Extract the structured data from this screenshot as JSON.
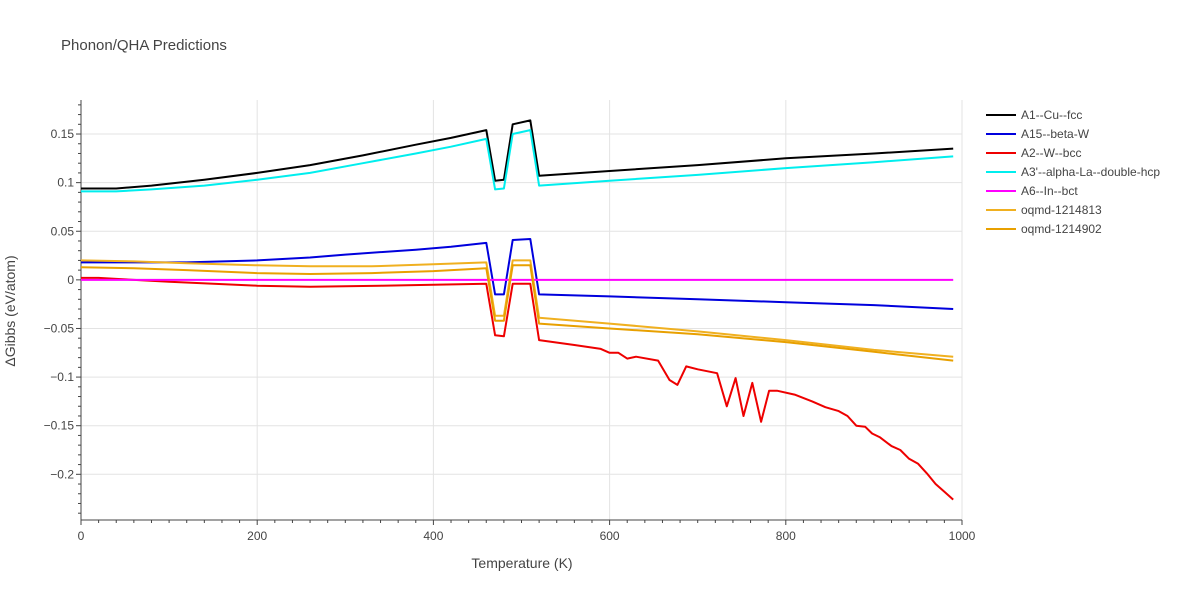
{
  "chart_data": {
    "type": "line",
    "title": "Phonon/QHA Predictions",
    "xlabel": "Temperature (K)",
    "ylabel": "ΔGibbs (eV/atom)",
    "xlim": [
      0,
      1000
    ],
    "ylim": [
      -0.247,
      0.185
    ],
    "xticks": [
      0,
      200,
      400,
      600,
      800,
      1000
    ],
    "xtick_labels": [
      "0",
      "200",
      "400",
      "600",
      "800",
      "1000"
    ],
    "yticks": [
      -0.2,
      -0.15,
      -0.1,
      -0.05,
      0,
      0.05,
      0.1,
      0.15
    ],
    "ytick_labels": [
      "−0.2",
      "−0.15",
      "−0.1",
      "−0.05",
      "0",
      "0.05",
      "0.1",
      "0.15"
    ],
    "grid": true,
    "legend_position": "right",
    "series": [
      {
        "name": "A1--Cu--fcc",
        "color": "#000000",
        "points": [
          [
            0,
            0.094
          ],
          [
            40,
            0.094
          ],
          [
            80,
            0.097
          ],
          [
            140,
            0.103
          ],
          [
            200,
            0.11
          ],
          [
            260,
            0.118
          ],
          [
            320,
            0.128
          ],
          [
            380,
            0.139
          ],
          [
            420,
            0.146
          ],
          [
            460,
            0.154
          ],
          [
            470,
            0.102
          ],
          [
            480,
            0.103
          ],
          [
            490,
            0.16
          ],
          [
            510,
            0.164
          ],
          [
            520,
            0.107
          ],
          [
            600,
            0.112
          ],
          [
            700,
            0.118
          ],
          [
            800,
            0.125
          ],
          [
            900,
            0.13
          ],
          [
            990,
            0.135
          ]
        ]
      },
      {
        "name": "A15--beta-W",
        "color": "#0000dd",
        "points": [
          [
            0,
            0.018
          ],
          [
            60,
            0.018
          ],
          [
            120,
            0.018
          ],
          [
            200,
            0.02
          ],
          [
            260,
            0.023
          ],
          [
            300,
            0.026
          ],
          [
            380,
            0.031
          ],
          [
            420,
            0.034
          ],
          [
            460,
            0.038
          ],
          [
            470,
            -0.015
          ],
          [
            480,
            -0.015
          ],
          [
            490,
            0.041
          ],
          [
            510,
            0.042
          ],
          [
            520,
            -0.015
          ],
          [
            600,
            -0.017
          ],
          [
            700,
            -0.02
          ],
          [
            800,
            -0.023
          ],
          [
            900,
            -0.026
          ],
          [
            990,
            -0.03
          ]
        ]
      },
      {
        "name": "A2--W--bcc",
        "color": "#ee0000",
        "points": [
          [
            0,
            0.002
          ],
          [
            20,
            0.002
          ],
          [
            40,
            0.001
          ],
          [
            100,
            -0.002
          ],
          [
            200,
            -0.006
          ],
          [
            260,
            -0.007
          ],
          [
            340,
            -0.006
          ],
          [
            400,
            -0.005
          ],
          [
            460,
            -0.004
          ],
          [
            470,
            -0.057
          ],
          [
            480,
            -0.058
          ],
          [
            490,
            -0.004
          ],
          [
            510,
            -0.004
          ],
          [
            520,
            -0.062
          ],
          [
            560,
            -0.067
          ],
          [
            590,
            -0.071
          ],
          [
            600,
            -0.075
          ],
          [
            610,
            -0.075
          ],
          [
            620,
            -0.081
          ],
          [
            630,
            -0.079
          ],
          [
            655,
            -0.083
          ],
          [
            668,
            -0.103
          ],
          [
            677,
            -0.108
          ],
          [
            687,
            -0.089
          ],
          [
            700,
            -0.092
          ],
          [
            722,
            -0.096
          ],
          [
            733,
            -0.13
          ],
          [
            743,
            -0.101
          ],
          [
            752,
            -0.14
          ],
          [
            762,
            -0.106
          ],
          [
            772,
            -0.146
          ],
          [
            781,
            -0.114
          ],
          [
            790,
            -0.114
          ],
          [
            810,
            -0.118
          ],
          [
            830,
            -0.125
          ],
          [
            845,
            -0.131
          ],
          [
            860,
            -0.135
          ],
          [
            870,
            -0.14
          ],
          [
            880,
            -0.15
          ],
          [
            890,
            -0.151
          ],
          [
            898,
            -0.158
          ],
          [
            907,
            -0.162
          ],
          [
            920,
            -0.171
          ],
          [
            930,
            -0.175
          ],
          [
            940,
            -0.184
          ],
          [
            950,
            -0.189
          ],
          [
            960,
            -0.199
          ],
          [
            970,
            -0.21
          ],
          [
            980,
            -0.218
          ],
          [
            990,
            -0.226
          ]
        ]
      },
      {
        "name": "A3'--alpha-La--double-hcp",
        "color": "#00eeee",
        "points": [
          [
            0,
            0.091
          ],
          [
            40,
            0.091
          ],
          [
            80,
            0.093
          ],
          [
            140,
            0.097
          ],
          [
            200,
            0.103
          ],
          [
            260,
            0.11
          ],
          [
            320,
            0.12
          ],
          [
            380,
            0.13
          ],
          [
            420,
            0.137
          ],
          [
            460,
            0.145
          ],
          [
            470,
            0.093
          ],
          [
            480,
            0.094
          ],
          [
            490,
            0.15
          ],
          [
            510,
            0.154
          ],
          [
            520,
            0.097
          ],
          [
            600,
            0.102
          ],
          [
            700,
            0.108
          ],
          [
            800,
            0.115
          ],
          [
            900,
            0.121
          ],
          [
            990,
            0.127
          ]
        ]
      },
      {
        "name": "A6--In--bct",
        "color": "#ff00ff",
        "points": [
          [
            0,
            0.0
          ],
          [
            990,
            0.0
          ]
        ]
      },
      {
        "name": "oqmd-1214813",
        "color": "#f0b020",
        "points": [
          [
            0,
            0.02
          ],
          [
            60,
            0.019
          ],
          [
            120,
            0.017
          ],
          [
            200,
            0.015
          ],
          [
            260,
            0.014
          ],
          [
            330,
            0.014
          ],
          [
            400,
            0.016
          ],
          [
            460,
            0.018
          ],
          [
            470,
            -0.037
          ],
          [
            480,
            -0.037
          ],
          [
            490,
            0.02
          ],
          [
            510,
            0.02
          ],
          [
            520,
            -0.039
          ],
          [
            600,
            -0.045
          ],
          [
            700,
            -0.053
          ],
          [
            800,
            -0.062
          ],
          [
            900,
            -0.072
          ],
          [
            990,
            -0.079
          ]
        ]
      },
      {
        "name": "oqmd-1214902",
        "color": "#e8a000",
        "points": [
          [
            0,
            0.013
          ],
          [
            60,
            0.012
          ],
          [
            120,
            0.01
          ],
          [
            200,
            0.007
          ],
          [
            260,
            0.006
          ],
          [
            330,
            0.007
          ],
          [
            400,
            0.009
          ],
          [
            460,
            0.012
          ],
          [
            470,
            -0.042
          ],
          [
            480,
            -0.042
          ],
          [
            490,
            0.015
          ],
          [
            510,
            0.015
          ],
          [
            520,
            -0.045
          ],
          [
            600,
            -0.05
          ],
          [
            700,
            -0.056
          ],
          [
            800,
            -0.064
          ],
          [
            900,
            -0.074
          ],
          [
            990,
            -0.083
          ]
        ]
      }
    ]
  }
}
